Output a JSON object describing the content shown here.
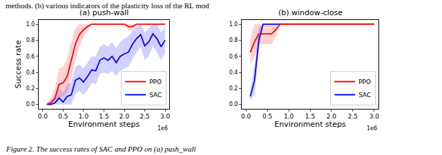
{
  "header_text": "methods. (b) various indicators of the plasticity loss of the RL mod",
  "caption": "Figure 2. The success rates of SAC and PPO on (a) push_wall",
  "chart_data": [
    {
      "type": "line",
      "title": "(a) push-wall",
      "x_label": "Environment steps",
      "y_label": "Success rate",
      "x": [
        0.1,
        0.2,
        0.3,
        0.4,
        0.5,
        0.6,
        0.7,
        0.8,
        0.9,
        1.0,
        1.1,
        1.2,
        1.3,
        1.4,
        1.5,
        1.6,
        1.7,
        1.8,
        1.9,
        2.0,
        2.1,
        2.2,
        2.3,
        2.4,
        2.5,
        2.6,
        2.7,
        2.8,
        2.9,
        3.0
      ],
      "series": [
        {
          "name": "SAC",
          "color": "#0000ff",
          "values": [
            0.0,
            0.0,
            0.02,
            0.08,
            0.03,
            0.1,
            0.12,
            0.3,
            0.33,
            0.28,
            0.35,
            0.43,
            0.42,
            0.55,
            0.58,
            0.55,
            0.6,
            0.52,
            0.6,
            0.63,
            0.65,
            0.75,
            0.82,
            0.87,
            0.73,
            0.78,
            0.88,
            0.82,
            0.72,
            0.8
          ],
          "lower": [
            0.0,
            0.0,
            0.0,
            0.0,
            0.0,
            0.0,
            0.0,
            0.13,
            0.17,
            0.12,
            0.18,
            0.27,
            0.25,
            0.38,
            0.4,
            0.38,
            0.42,
            0.35,
            0.42,
            0.45,
            0.47,
            0.57,
            0.65,
            0.72,
            0.55,
            0.6,
            0.72,
            0.65,
            0.55,
            0.63
          ],
          "upper": [
            0.02,
            0.05,
            0.1,
            0.2,
            0.15,
            0.25,
            0.28,
            0.47,
            0.5,
            0.45,
            0.52,
            0.6,
            0.6,
            0.72,
            0.75,
            0.72,
            0.78,
            0.7,
            0.78,
            0.82,
            0.85,
            0.92,
            0.97,
            1.0,
            0.9,
            0.95,
            1.0,
            1.0,
            0.9,
            0.97
          ]
        },
        {
          "name": "PPO",
          "color": "#ff0000",
          "values": [
            0.0,
            0.02,
            0.08,
            0.25,
            0.27,
            0.35,
            0.55,
            0.75,
            0.87,
            0.93,
            0.97,
            1.0,
            1.0,
            1.0,
            1.0,
            1.0,
            1.0,
            1.0,
            1.0,
            1.0,
            0.97,
            0.97,
            1.0,
            1.0,
            1.0,
            1.0,
            1.0,
            1.0,
            1.0,
            1.0
          ],
          "lower": [
            0.0,
            0.0,
            0.0,
            0.08,
            0.1,
            0.15,
            0.32,
            0.55,
            0.72,
            0.85,
            0.92,
            1.0,
            1.0,
            1.0,
            1.0,
            1.0,
            1.0,
            1.0,
            1.0,
            1.0,
            0.92,
            0.92,
            1.0,
            1.0,
            1.0,
            1.0,
            1.0,
            1.0,
            1.0,
            1.0
          ],
          "upper": [
            0.0,
            0.08,
            0.2,
            0.45,
            0.47,
            0.58,
            0.78,
            0.95,
            1.0,
            1.0,
            1.0,
            1.0,
            1.0,
            1.0,
            1.0,
            1.0,
            1.0,
            1.0,
            1.0,
            1.0,
            1.0,
            1.0,
            1.0,
            1.0,
            1.0,
            1.0,
            1.0,
            1.0,
            1.0,
            1.0
          ]
        }
      ],
      "xlim": [
        -0.1,
        3.1
      ],
      "xticks": [
        {
          "value": 0,
          "label": "0.0"
        },
        0.5,
        {
          "value": 1,
          "label": "1.0"
        },
        1.5,
        {
          "value": 2,
          "label": "2.0"
        },
        2.5,
        {
          "value": 3,
          "label": "3.0"
        }
      ],
      "ylim": [
        -0.05,
        1.05
      ],
      "yticks": [
        {
          "value": 0,
          "label": "0.0"
        },
        0.2,
        0.4,
        0.6,
        0.8,
        {
          "value": 1,
          "label": "1.0"
        }
      ],
      "grid": false,
      "legend": "lower right",
      "annotations": [
        {
          "text": "1e6"
        }
      ]
    },
    {
      "type": "line",
      "title": "(b) window-close",
      "x_label": "Environment steps",
      "x": [
        0.1,
        0.2,
        0.3,
        0.4,
        0.5,
        0.6,
        0.7,
        0.8,
        0.9,
        1.0,
        1.1,
        1.2,
        1.3,
        1.4,
        1.5,
        1.6,
        1.7,
        1.8,
        1.9,
        2.0,
        2.1,
        2.2,
        2.3,
        2.4,
        2.5,
        2.6,
        2.7,
        2.8,
        2.9,
        3.0
      ],
      "series": [
        {
          "name": "SAC",
          "color": "#0000ff",
          "values": [
            0.1,
            0.3,
            0.8,
            1.0,
            1.0,
            1.0,
            1.0,
            1.0,
            1.0,
            1.0,
            1.0,
            1.0,
            1.0,
            1.0,
            1.0,
            1.0,
            1.0,
            1.0,
            1.0,
            1.0,
            1.0,
            1.0,
            1.0,
            1.0,
            1.0,
            1.0,
            1.0,
            1.0,
            1.0,
            1.0
          ],
          "lower": [
            0.05,
            0.12,
            0.65,
            1.0,
            1.0,
            1.0,
            1.0,
            1.0,
            1.0,
            1.0,
            1.0,
            1.0,
            1.0,
            1.0,
            1.0,
            1.0,
            1.0,
            1.0,
            1.0,
            1.0,
            1.0,
            1.0,
            1.0,
            1.0,
            1.0,
            1.0,
            1.0,
            1.0,
            1.0,
            1.0
          ],
          "upper": [
            0.15,
            0.5,
            0.95,
            1.0,
            1.0,
            1.0,
            1.0,
            1.0,
            1.0,
            1.0,
            1.0,
            1.0,
            1.0,
            1.0,
            1.0,
            1.0,
            1.0,
            1.0,
            1.0,
            1.0,
            1.0,
            1.0,
            1.0,
            1.0,
            1.0,
            1.0,
            1.0,
            1.0,
            1.0,
            1.0
          ]
        },
        {
          "name": "PPO",
          "color": "#ff0000",
          "values": [
            0.65,
            0.78,
            0.88,
            0.88,
            0.88,
            0.88,
            0.93,
            1.0,
            1.0,
            1.0,
            1.0,
            1.0,
            1.0,
            1.0,
            1.0,
            1.0,
            1.0,
            1.0,
            1.0,
            1.0,
            1.0,
            1.0,
            1.0,
            1.0,
            1.0,
            1.0,
            1.0,
            1.0,
            1.0,
            1.0
          ],
          "lower": [
            0.5,
            0.6,
            0.75,
            0.75,
            0.75,
            0.75,
            0.85,
            1.0,
            1.0,
            1.0,
            1.0,
            1.0,
            1.0,
            1.0,
            1.0,
            1.0,
            1.0,
            1.0,
            1.0,
            1.0,
            1.0,
            1.0,
            1.0,
            1.0,
            1.0,
            1.0,
            1.0,
            1.0,
            1.0,
            1.0
          ],
          "upper": [
            0.8,
            1.0,
            1.0,
            1.0,
            1.0,
            1.0,
            1.0,
            1.0,
            1.0,
            1.0,
            1.0,
            1.0,
            1.0,
            1.0,
            1.0,
            1.0,
            1.0,
            1.0,
            1.0,
            1.0,
            1.0,
            1.0,
            1.0,
            1.0,
            1.0,
            1.0,
            1.0,
            1.0,
            1.0,
            1.0
          ]
        }
      ],
      "xlim": [
        -0.1,
        3.1
      ],
      "xticks": [
        {
          "value": 0,
          "label": "0.0"
        },
        0.5,
        {
          "value": 1,
          "label": "1.0"
        },
        1.5,
        {
          "value": 2,
          "label": "2.0"
        },
        2.5,
        {
          "value": 3,
          "label": "3.0"
        }
      ],
      "ylim": [
        -0.05,
        1.05
      ],
      "yticks": [
        {
          "value": 0,
          "label": "0.0"
        },
        0.2,
        0.4,
        0.6,
        0.8,
        {
          "value": 1,
          "label": "1.0"
        }
      ],
      "grid": false,
      "legend": "lower right",
      "annotations": [
        {
          "text": "1e6"
        }
      ]
    }
  ]
}
